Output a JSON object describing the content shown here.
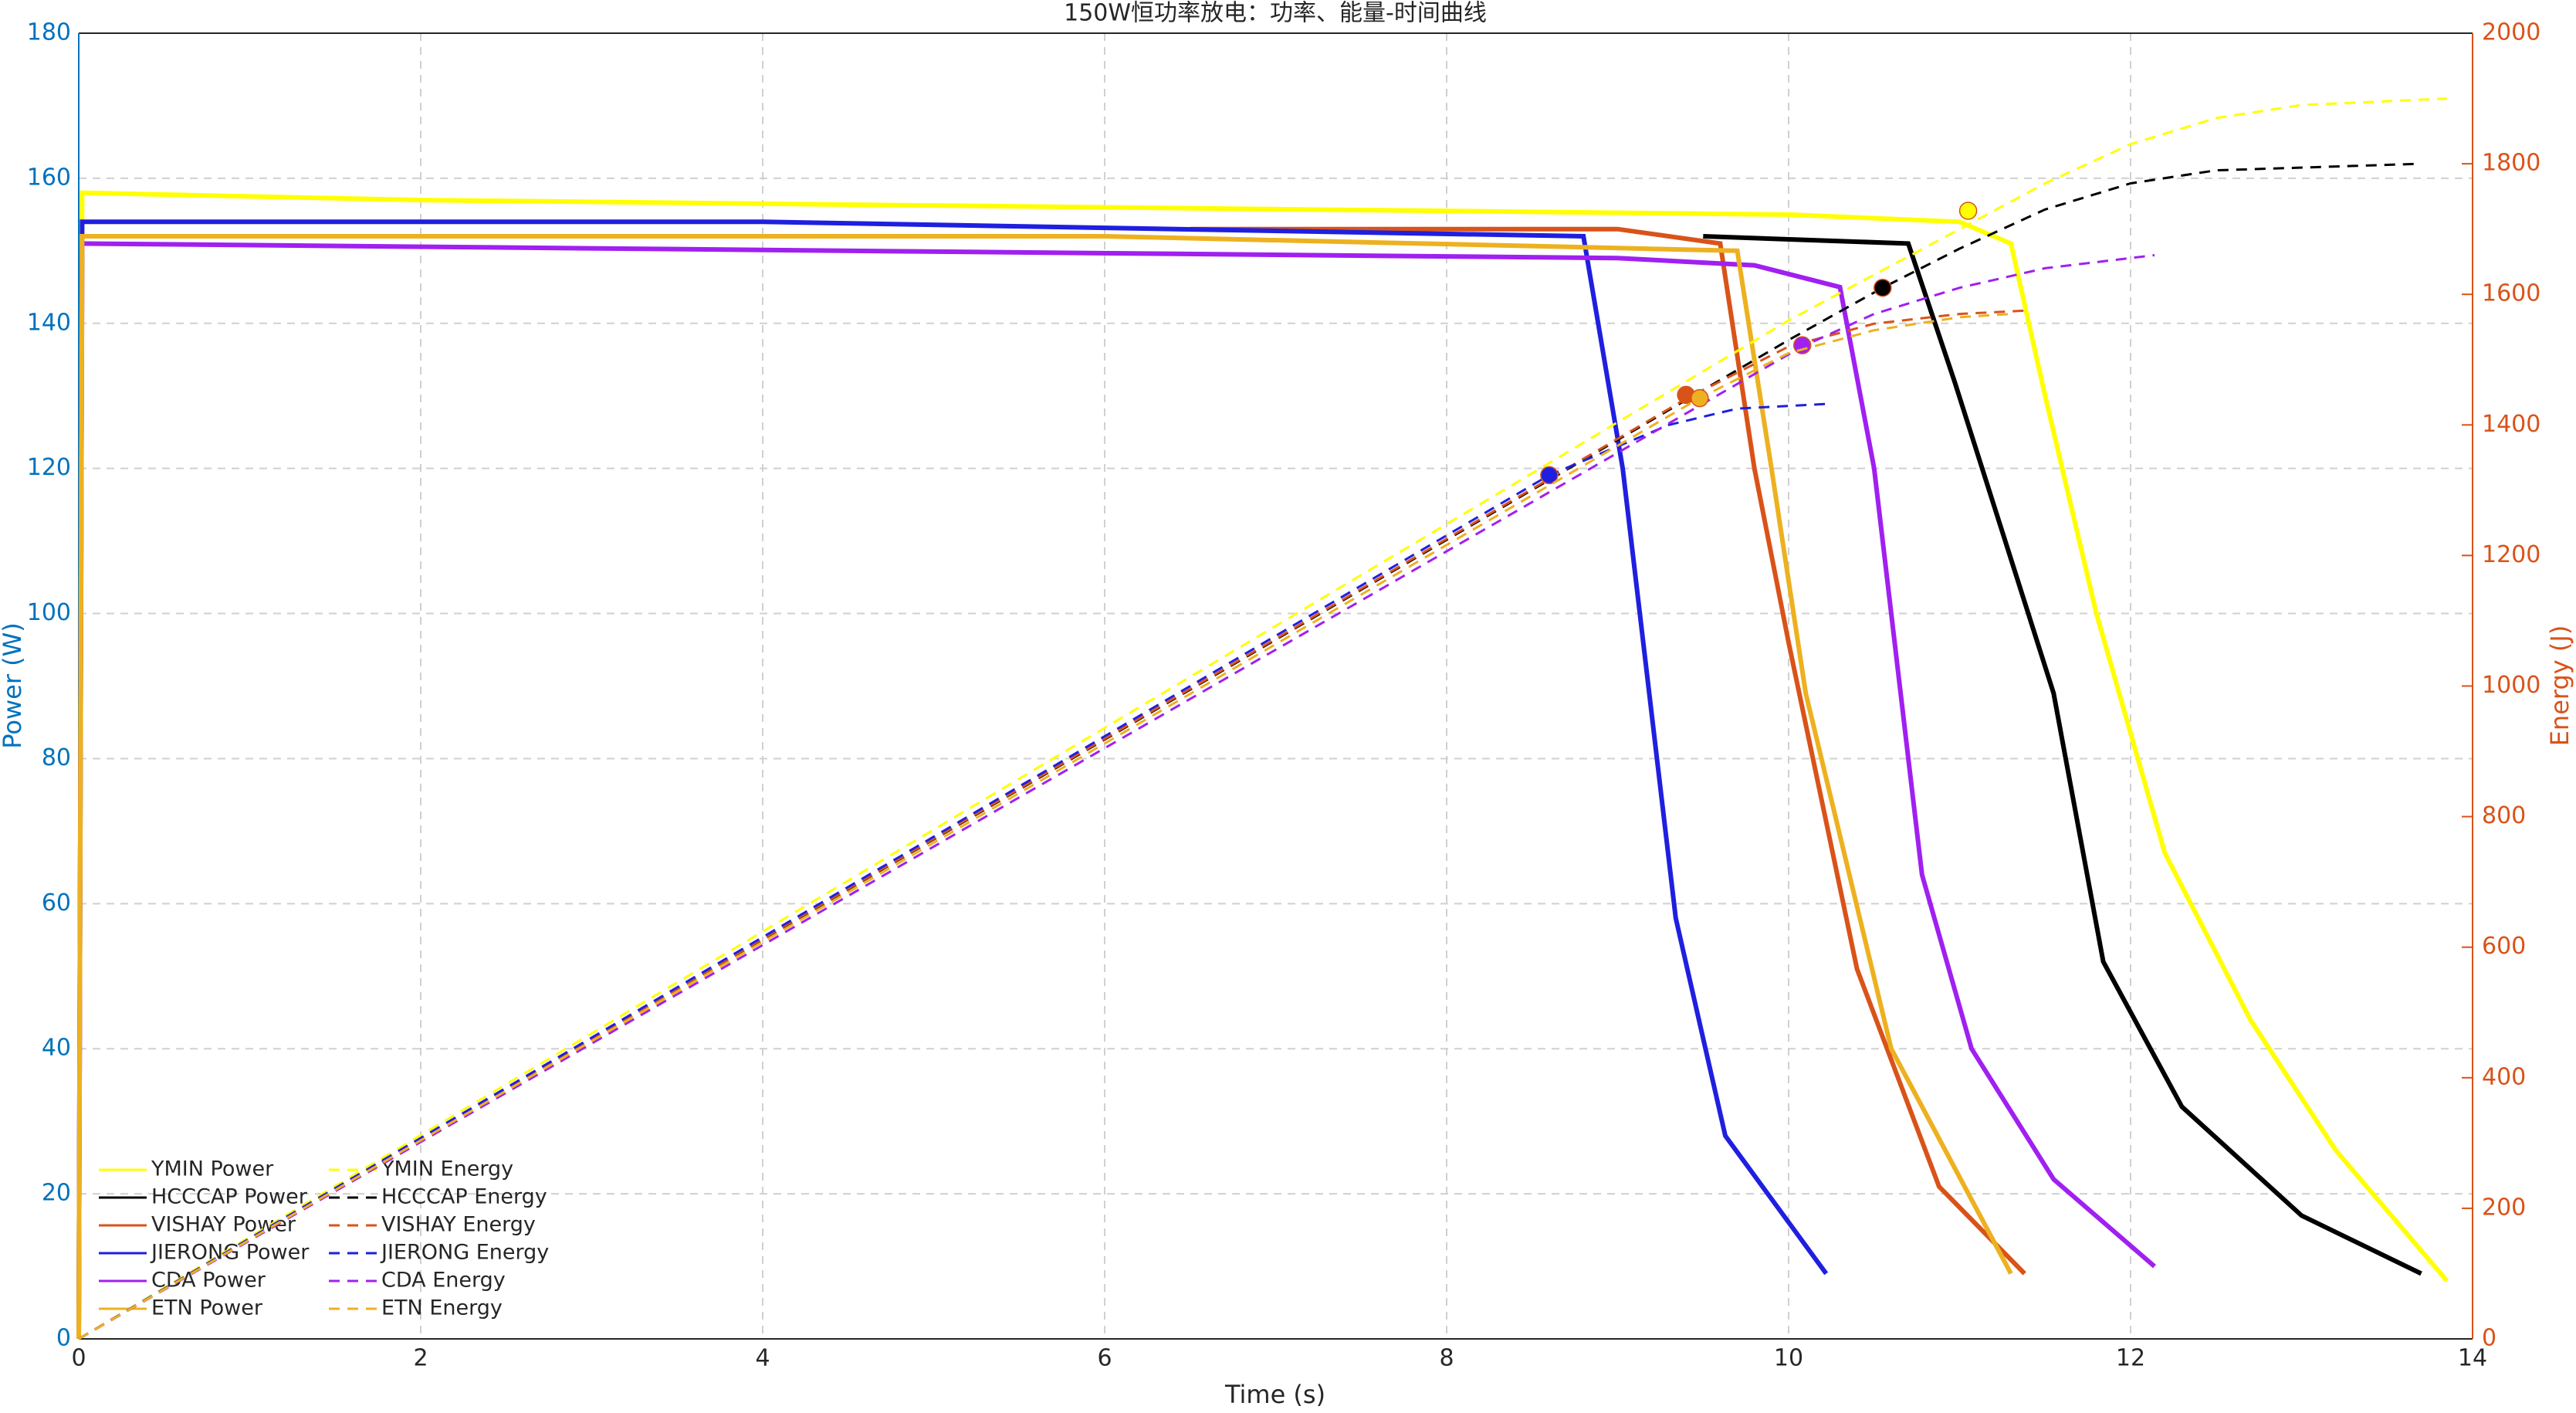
{
  "chart_data": {
    "type": "line",
    "title": "150W恒功率放电：功率、能量-时间曲线",
    "xlabel": "Time (s)",
    "ylabel": "Power (W)",
    "y2label": "Energy (J)",
    "xlim": [
      0,
      14
    ],
    "xticks": [
      0,
      2,
      4,
      6,
      8,
      10,
      12,
      14
    ],
    "ylim": [
      0,
      180
    ],
    "yticks": [
      0,
      20,
      40,
      60,
      80,
      100,
      120,
      140,
      160,
      180
    ],
    "y2lim": [
      0,
      2000
    ],
    "y2ticks": [
      0,
      200,
      400,
      600,
      800,
      1000,
      1200,
      1400,
      1600,
      1800,
      2000
    ],
    "ycolor": "#0072BD",
    "y2color": "#D95319",
    "grid": true,
    "legend": "lower left",
    "series": [
      {
        "name": "YMIN Power",
        "color": "#FFFF00",
        "line_style": "solid",
        "x": [
          0,
          0.02,
          2,
          6,
          10,
          11,
          11.3,
          11.5,
          11.8,
          12.2,
          12.7,
          13.2,
          13.85
        ],
        "values": [
          0,
          158,
          157,
          156,
          155,
          154,
          151,
          130,
          100,
          67,
          44,
          26,
          8
        ]
      },
      {
        "name": "HCCCAP Power",
        "color": "#000000",
        "line_style": "solid",
        "x": [
          9.5,
          10.7,
          10.97,
          11.55,
          11.84,
          12.3,
          13,
          13.7
        ],
        "values": [
          152,
          151,
          132,
          89,
          52,
          32,
          17,
          9
        ]
      },
      {
        "name": "VISHAY Power",
        "color": "#D95319",
        "line_style": "solid",
        "x": [
          6.5,
          9,
          9.6,
          9.8,
          10,
          10.4,
          10.88,
          11.38
        ],
        "values": [
          153,
          153,
          151,
          120,
          96,
          51,
          21,
          9
        ]
      },
      {
        "name": "JIERONG Power",
        "color": "#1F1FE0",
        "line_style": "solid",
        "x": [
          0,
          0.02,
          4,
          8.8,
          9.03,
          9.34,
          9.63,
          10.22
        ],
        "values": [
          0,
          154,
          154,
          152,
          120,
          58,
          28,
          9
        ]
      },
      {
        "name": "CDA Power",
        "color": "#A020F0",
        "line_style": "solid",
        "x": [
          0,
          0.02,
          9,
          9.8,
          10.3,
          10.5,
          10.78,
          11.07,
          11.55,
          12.14
        ],
        "values": [
          0,
          151,
          149,
          148,
          145,
          120,
          64,
          40,
          22,
          10
        ]
      },
      {
        "name": "ETN Power",
        "color": "#EDB120",
        "line_style": "solid",
        "x": [
          0,
          0.02,
          6,
          9.7,
          9.9,
          10.1,
          10.6,
          11.3
        ],
        "values": [
          0,
          152,
          152,
          150,
          120,
          89,
          40,
          9
        ]
      },
      {
        "name": "YMIN Energy",
        "color": "#FFFF00",
        "line_style": "dashed",
        "axis": "y2",
        "x": [
          0,
          10,
          11,
          11.5,
          12,
          12.5,
          13,
          13.85
        ],
        "values": [
          0,
          1560,
          1700,
          1770,
          1830,
          1870,
          1890,
          1900
        ],
        "marker": {
          "x": 11.05,
          "y": 1728
        }
      },
      {
        "name": "HCCCAP Energy",
        "color": "#000000",
        "line_style": "dashed",
        "axis": "y2",
        "x": [
          0,
          10,
          10.55,
          11,
          11.5,
          12,
          12.5,
          13.7
        ],
        "values": [
          0,
          1530,
          1610,
          1670,
          1730,
          1770,
          1790,
          1800
        ],
        "marker": {
          "x": 10.55,
          "y": 1610
        }
      },
      {
        "name": "VISHAY Energy",
        "color": "#D95319",
        "line_style": "dashed",
        "axis": "y2",
        "x": [
          0,
          9.4,
          10,
          10.5,
          11,
          11.38
        ],
        "values": [
          0,
          1440,
          1520,
          1555,
          1570,
          1575
        ],
        "marker": {
          "x": 9.4,
          "y": 1446
        }
      },
      {
        "name": "JIERONG Energy",
        "color": "#1F1FE0",
        "line_style": "dashed",
        "axis": "y2",
        "x": [
          0,
          8.6,
          9.3,
          9.7,
          10.22
        ],
        "values": [
          0,
          1323,
          1400,
          1425,
          1432
        ],
        "marker": {
          "x": 8.6,
          "y": 1323
        }
      },
      {
        "name": "CDA Energy",
        "color": "#A020F0",
        "line_style": "dashed",
        "axis": "y2",
        "x": [
          0,
          10.08,
          10.5,
          11,
          11.5,
          12.14
        ],
        "values": [
          0,
          1520,
          1570,
          1610,
          1640,
          1660
        ],
        "marker": {
          "x": 10.08,
          "y": 1522
        }
      },
      {
        "name": "ETN Energy",
        "color": "#EDB120",
        "line_style": "dashed",
        "axis": "y2",
        "x": [
          0,
          9.48,
          10,
          10.5,
          11,
          11.3
        ],
        "values": [
          0,
          1441,
          1510,
          1545,
          1565,
          1570
        ],
        "marker": {
          "x": 9.48,
          "y": 1441
        }
      }
    ]
  }
}
